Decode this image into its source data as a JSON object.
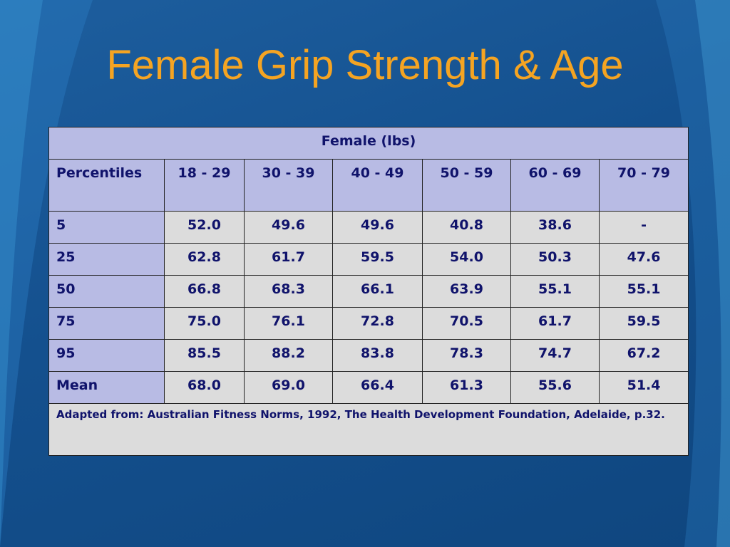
{
  "slide": {
    "title": "Female Grip Strength & Age"
  },
  "table": {
    "header": "Female (lbs)",
    "columns": [
      "Percentiles",
      "18 - 29",
      "30 - 39",
      "40 - 49",
      "50 - 59",
      "60 - 69",
      "70 - 79"
    ],
    "rows": [
      [
        "5",
        "52.0",
        "49.6",
        "49.6",
        "40.8",
        "38.6",
        "-"
      ],
      [
        "25",
        "62.8",
        "61.7",
        "59.5",
        "54.0",
        "50.3",
        "47.6"
      ],
      [
        "50",
        "66.8",
        "68.3",
        "66.1",
        "63.9",
        "55.1",
        "55.1"
      ],
      [
        "75",
        "75.0",
        "76.1",
        "72.8",
        "70.5",
        "61.7",
        "59.5"
      ],
      [
        "95",
        "85.5",
        "88.2",
        "83.8",
        "78.3",
        "74.7",
        "67.2"
      ],
      [
        "Mean",
        "68.0",
        "69.0",
        "66.4",
        "61.3",
        "55.6",
        "51.4"
      ]
    ],
    "footnote": "Adapted from: Australian Fitness Norms, 1992, The Health Development Foundation, Adelaide, p.32."
  },
  "colors": {
    "background": "#14508e",
    "title": "#f5a422",
    "header_fill": "#b8bbe4",
    "cell_fill": "#dcdcdc",
    "text": "#10136b"
  }
}
